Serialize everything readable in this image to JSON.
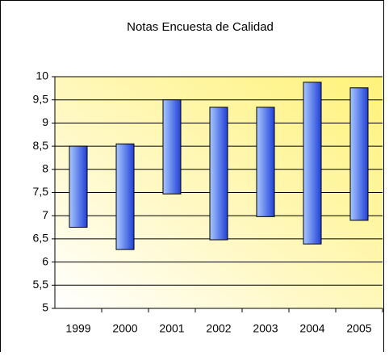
{
  "chart_data": {
    "type": "range_bar",
    "title": "Notas Encuesta de Calidad",
    "categories": [
      "1999",
      "2000",
      "2001",
      "2002",
      "2003",
      "2004",
      "2005"
    ],
    "low": [
      6.75,
      6.27,
      7.47,
      6.48,
      6.98,
      6.39,
      6.9
    ],
    "high": [
      8.5,
      8.55,
      9.5,
      9.34,
      9.34,
      9.88,
      9.76
    ],
    "color": "#2f5fe0",
    "ylim": [
      5,
      10
    ],
    "yticks": [
      5,
      {
        "value": 5.5,
        "label": "5,5"
      },
      6,
      {
        "value": 6.5,
        "label": "6,5"
      },
      7,
      {
        "value": 7.5,
        "label": "7,5"
      },
      8,
      {
        "value": 8.5,
        "label": "8,5"
      },
      9,
      {
        "value": 9.5,
        "label": "9,5"
      },
      10
    ],
    "grid": true
  }
}
